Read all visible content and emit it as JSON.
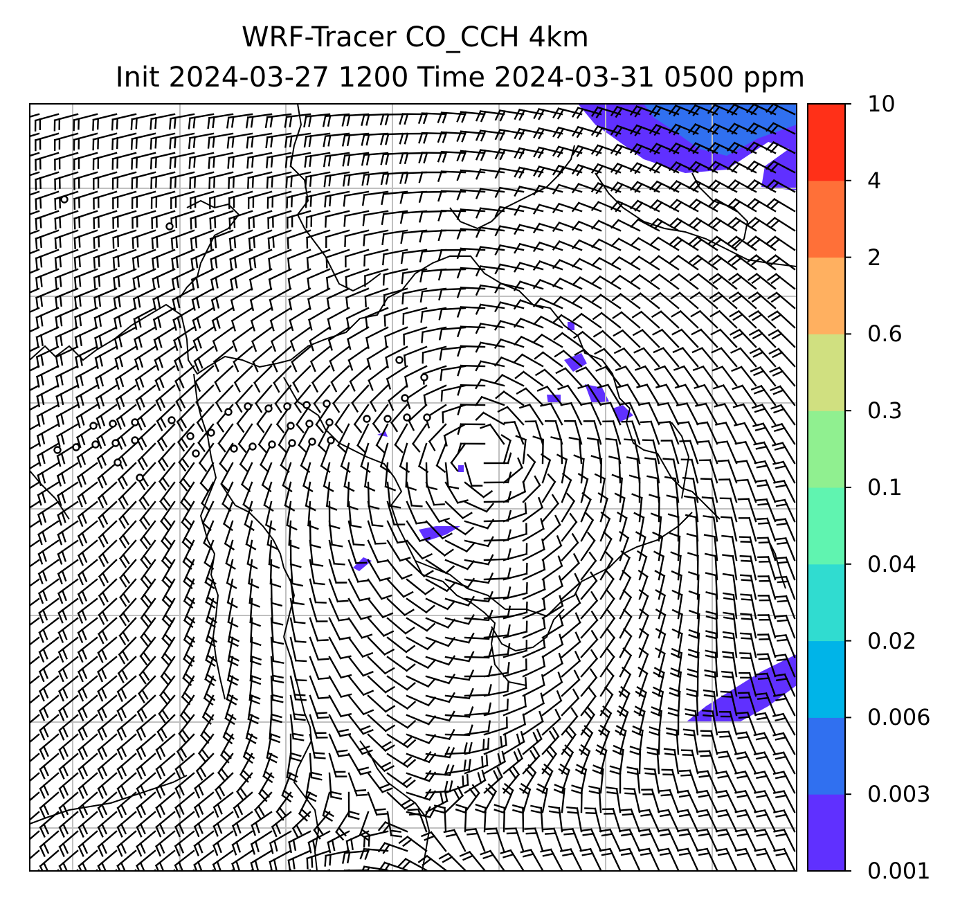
{
  "title_line1": "WRF-Tracer CO_CCH 4km",
  "title_line2": "Init 2024-03-27 1200 Time 2024-03-31 0500 ppm",
  "colorbar": {
    "levels": [
      "0.001",
      "0.003",
      "0.006",
      "0.02",
      "0.04",
      "0.1",
      "0.3",
      "0.6",
      "2",
      "4",
      "10"
    ],
    "colors": [
      "#6030ff",
      "#3070f0",
      "#00b4e8",
      "#30dcd0",
      "#60f4b0",
      "#90f090",
      "#d0e080",
      "#ffb060",
      "#ff7038",
      "#ff3018"
    ]
  },
  "map": {
    "background": "#ffffff",
    "gridline_color": "#c0c0c0",
    "coastline_color": "#000000",
    "barb_color": "#000000"
  }
}
